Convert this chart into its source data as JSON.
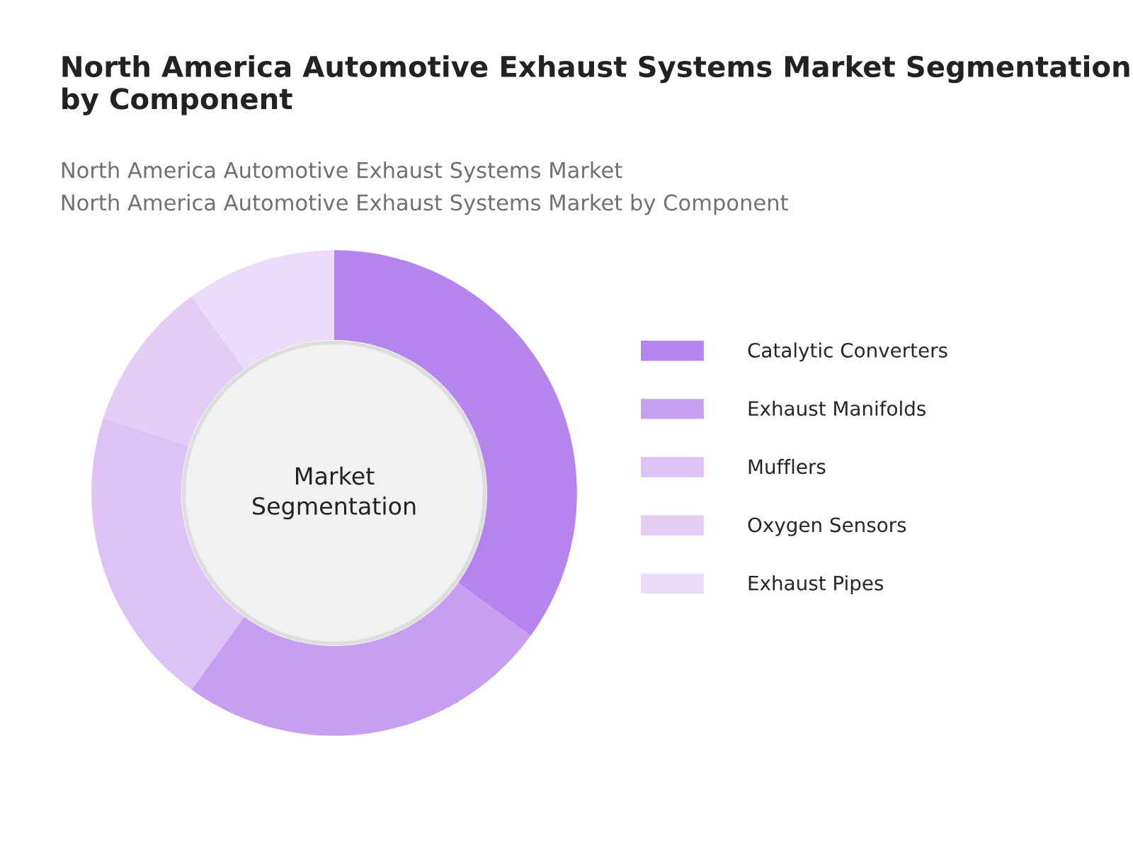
{
  "chart_data": {
    "type": "donut",
    "title": "North America Automotive Exhaust Systems Market Segmentation by Component",
    "subtitle": "North America Automotive Exhaust Systems Market\nNorth America Automotive Exhaust Systems Market by Component",
    "categories": [
      "Catalytic Converters",
      "Exhaust Manifolds",
      "Mufflers",
      "Oxygen Sensors",
      "Exhaust Pipes"
    ],
    "values": [
      35,
      25,
      20,
      10,
      10
    ],
    "colors": [
      "#b584ec",
      "#c89ff0",
      "#dcc2f6",
      "#e3cdf7",
      "#ebdcfa"
    ],
    "annotations": [
      "Market\nSegmentation"
    ],
    "legend": "right"
  }
}
